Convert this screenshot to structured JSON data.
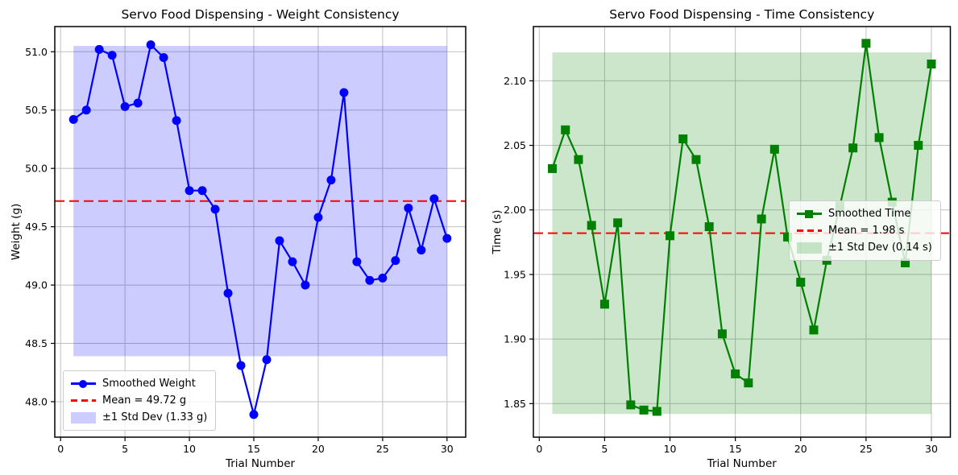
{
  "figure": {
    "background": "#ffffff",
    "text_color": "#000000",
    "grid_color": "#c0c0c0",
    "spine_color": "#000000"
  },
  "chart_data": [
    {
      "id": "weight",
      "type": "line",
      "title": "Servo Food Dispensing - Weight Consistency",
      "xlabel": "Trial Number",
      "ylabel": "Weight (g)",
      "x": [
        1,
        2,
        3,
        4,
        5,
        6,
        7,
        8,
        9,
        10,
        11,
        12,
        13,
        14,
        15,
        16,
        17,
        18,
        19,
        20,
        21,
        22,
        23,
        24,
        25,
        26,
        27,
        28,
        29,
        30
      ],
      "series": [
        {
          "name": "Smoothed Weight",
          "color": "#0000ff",
          "marker": "circle",
          "values": [
            50.42,
            50.5,
            51.02,
            50.97,
            50.53,
            50.56,
            51.06,
            50.95,
            50.41,
            49.81,
            49.81,
            49.65,
            48.93,
            48.31,
            47.89,
            48.36,
            49.38,
            49.2,
            49.0,
            49.58,
            49.9,
            50.65,
            49.2,
            49.04,
            49.06,
            49.21,
            49.66,
            49.3,
            49.74,
            49.4
          ]
        }
      ],
      "mean_value": 49.72,
      "mean_label": "Mean = 49.72 g",
      "mean_color": "#ff0000",
      "std_value": 1.33,
      "band_label": "±1 Std Dev (1.33 g)",
      "band_color": "#0000ff",
      "band_alpha": 0.2,
      "xlim": [
        -0.45,
        31.45
      ],
      "ylim": [
        47.696,
        51.216
      ],
      "xticks": [
        0,
        5,
        10,
        15,
        20,
        25,
        30
      ],
      "xtick_labels": [
        "0",
        "5",
        "10",
        "15",
        "20",
        "25",
        "30"
      ],
      "yticks": [
        48.0,
        48.5,
        49.0,
        49.5,
        50.0,
        50.5,
        51.0
      ],
      "ytick_labels": [
        "48.0",
        "48.5",
        "49.0",
        "49.5",
        "50.0",
        "50.5",
        "51.0"
      ],
      "grid": true,
      "legend_position": "lower left"
    },
    {
      "id": "time",
      "type": "line",
      "title": "Servo Food Dispensing - Time Consistency",
      "xlabel": "Trial Number",
      "ylabel": "Time (s)",
      "x": [
        1,
        2,
        3,
        4,
        5,
        6,
        7,
        8,
        9,
        10,
        11,
        12,
        13,
        14,
        15,
        16,
        17,
        18,
        19,
        20,
        21,
        22,
        23,
        24,
        25,
        26,
        27,
        28,
        29,
        30
      ],
      "series": [
        {
          "name": "Smoothed Time",
          "color": "#008000",
          "marker": "square",
          "values": [
            2.032,
            2.062,
            2.039,
            1.988,
            1.927,
            1.99,
            1.849,
            1.845,
            1.844,
            1.98,
            2.055,
            2.039,
            1.987,
            1.904,
            1.873,
            1.866,
            1.993,
            2.047,
            1.979,
            1.944,
            1.907,
            1.961,
            2.003,
            2.048,
            2.129,
            2.056,
            2.006,
            1.959,
            2.05,
            2.113
          ]
        }
      ],
      "mean_value": 1.982,
      "mean_label": "Mean = 1.98 s",
      "mean_color": "#ff0000",
      "std_value": 0.14,
      "band_label": "±1 Std Dev (0.14 s)",
      "band_color": "#008000",
      "band_alpha": 0.2,
      "xlim": [
        -0.45,
        31.45
      ],
      "ylim": [
        1.824,
        2.142
      ],
      "xticks": [
        0,
        5,
        10,
        15,
        20,
        25,
        30
      ],
      "xtick_labels": [
        "0",
        "5",
        "10",
        "15",
        "20",
        "25",
        "30"
      ],
      "yticks": [
        1.85,
        1.9,
        1.95,
        2.0,
        2.05,
        2.1
      ],
      "ytick_labels": [
        "1.85",
        "1.90",
        "1.95",
        "2.00",
        "2.05",
        "2.10"
      ],
      "grid": true,
      "legend_position": "center right"
    }
  ]
}
